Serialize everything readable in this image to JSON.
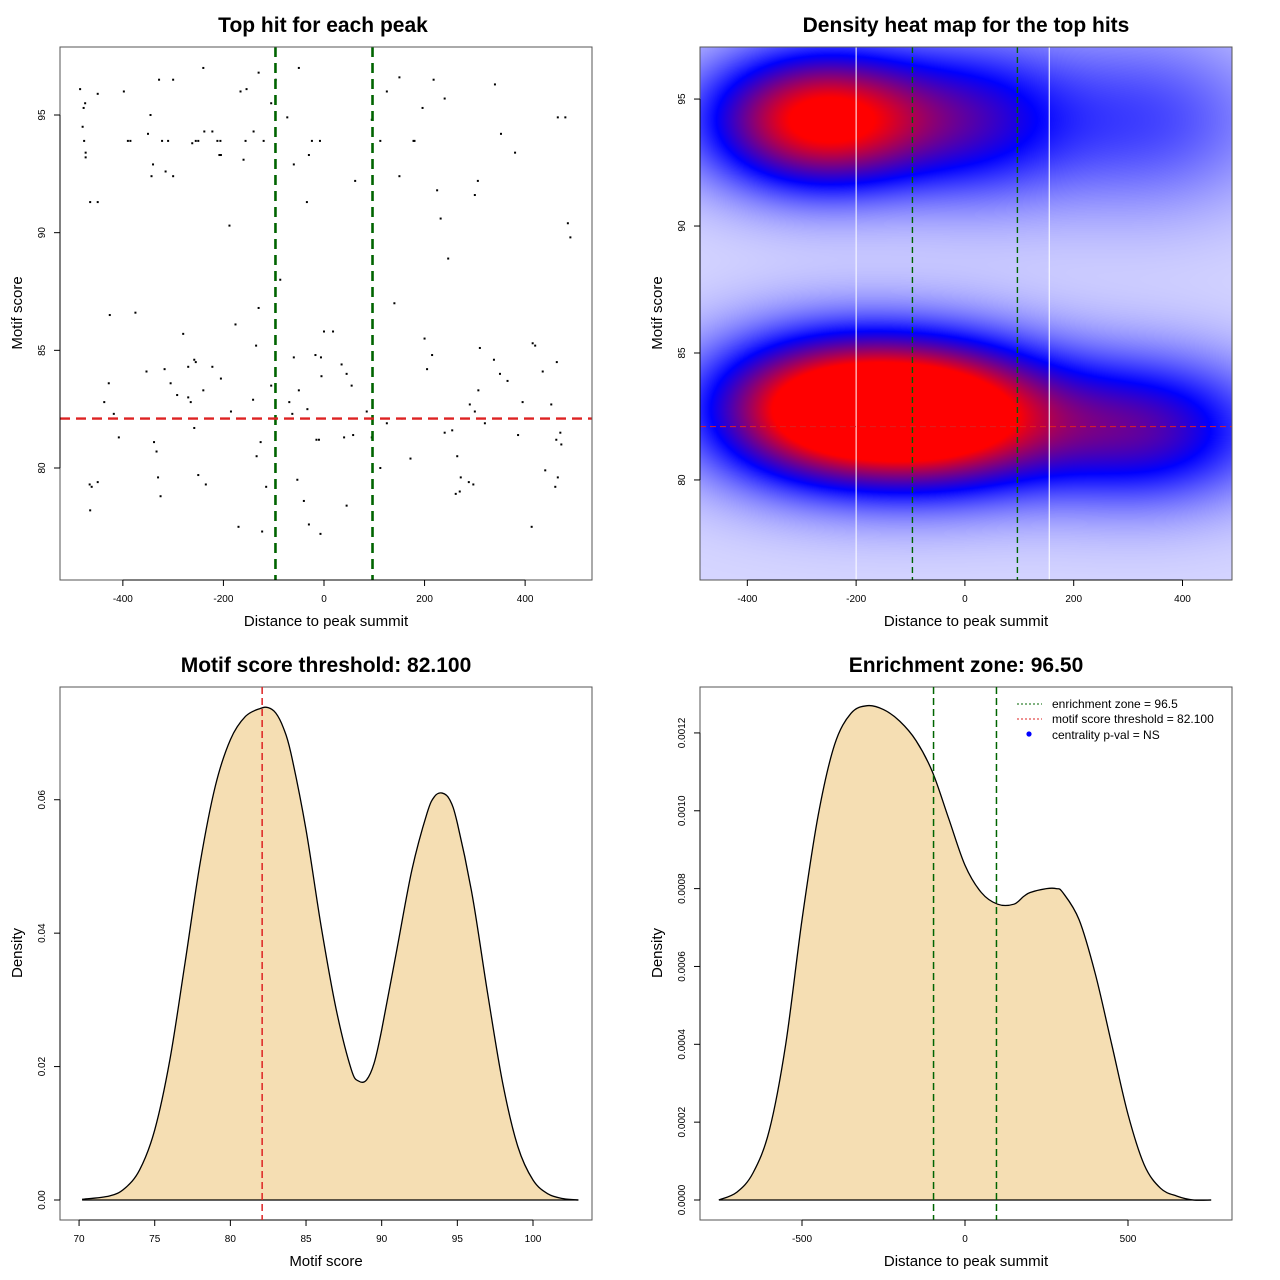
{
  "colors": {
    "enrichment_line": "#006400",
    "threshold_line": "#dd2222",
    "density_fill": "#f5deb3",
    "heat_low": "#ffffff",
    "heat_mid": "#0000ff",
    "heat_high": "#ff0000",
    "point": "#000000",
    "centrality_dot": "#0000ff"
  },
  "chart_data": [
    {
      "id": "scatter",
      "type": "scatter",
      "title": "Top hit for each peak",
      "xlabel": "Distance to peak summit",
      "ylabel": "Motif score",
      "xlim": [
        -525,
        533
      ],
      "ylim": [
        75.24,
        97.89
      ],
      "xticks": [
        -400,
        -200,
        0,
        200,
        400
      ],
      "xtick_labels": [
        "-400",
        "-200",
        "0",
        "200",
        "400"
      ],
      "yticks": [
        80,
        85,
        90,
        95
      ],
      "ytick_labels": [
        "80",
        "85",
        "90",
        "95"
      ],
      "vlines": [
        -96.5,
        96.5
      ],
      "hline": 82.1,
      "points": [
        [
          -485,
          96.1
        ],
        [
          -475,
          95.5
        ],
        [
          -478,
          95.3
        ],
        [
          -480,
          94.5
        ],
        [
          -477,
          93.9
        ],
        [
          -474,
          93.4
        ],
        [
          -474,
          93.2
        ],
        [
          -465,
          91.3
        ],
        [
          -450,
          91.3
        ],
        [
          -450,
          95.9
        ],
        [
          -398,
          96.0
        ],
        [
          -390,
          93.9
        ],
        [
          -385,
          93.9
        ],
        [
          -350,
          94.2
        ],
        [
          -345,
          95.0
        ],
        [
          -340,
          92.9
        ],
        [
          -343,
          92.4
        ],
        [
          -328,
          96.5
        ],
        [
          -322,
          93.9
        ],
        [
          -315,
          92.6
        ],
        [
          -310,
          93.9
        ],
        [
          -300,
          96.5
        ],
        [
          -300,
          92.4
        ],
        [
          -262,
          93.8
        ],
        [
          -255,
          93.9
        ],
        [
          -250,
          93.9
        ],
        [
          -238,
          94.3
        ],
        [
          -222,
          94.3
        ],
        [
          -212,
          93.9
        ],
        [
          -206,
          93.9
        ],
        [
          -208,
          93.3
        ],
        [
          -205,
          93.3
        ],
        [
          -188,
          90.3
        ],
        [
          -166,
          96.0
        ],
        [
          -160,
          93.1
        ],
        [
          -154,
          96.1
        ],
        [
          -156,
          93.9
        ],
        [
          -140,
          94.3
        ],
        [
          -120,
          93.9
        ],
        [
          -130,
          96.8
        ],
        [
          -105,
          95.5
        ],
        [
          -96,
          96.5
        ],
        [
          -73,
          94.9
        ],
        [
          -60,
          92.9
        ],
        [
          -50,
          97.0
        ],
        [
          -24,
          93.9
        ],
        [
          -8,
          93.9
        ],
        [
          -30,
          93.3
        ],
        [
          -34,
          91.3
        ],
        [
          -240,
          97.0
        ],
        [
          -426,
          86.5
        ],
        [
          -375,
          86.6
        ],
        [
          -176,
          86.1
        ],
        [
          -130,
          86.8
        ],
        [
          -87,
          88.0
        ],
        [
          -428,
          83.6
        ],
        [
          -437,
          82.8
        ],
        [
          -418,
          82.3
        ],
        [
          -353,
          84.1
        ],
        [
          -317,
          84.2
        ],
        [
          -305,
          83.6
        ],
        [
          -292,
          83.1
        ],
        [
          -280,
          85.7
        ],
        [
          -270,
          84.3
        ],
        [
          -258,
          84.6
        ],
        [
          -255,
          84.5
        ],
        [
          -240,
          83.3
        ],
        [
          -270,
          83.0
        ],
        [
          -265,
          82.8
        ],
        [
          -222,
          84.3
        ],
        [
          -205,
          83.8
        ],
        [
          -185,
          82.4
        ],
        [
          -141,
          82.9
        ],
        [
          -135,
          85.2
        ],
        [
          -105,
          83.5
        ],
        [
          -69,
          82.8
        ],
        [
          -60,
          84.7
        ],
        [
          -50,
          83.3
        ],
        [
          -63,
          82.3
        ],
        [
          -33,
          82.5
        ],
        [
          -17,
          84.8
        ],
        [
          -6,
          84.7
        ],
        [
          -5,
          83.9
        ],
        [
          0,
          85.8
        ],
        [
          18,
          85.8
        ],
        [
          35,
          84.4
        ],
        [
          45,
          84.0
        ],
        [
          55,
          83.5
        ],
        [
          85,
          82.4
        ],
        [
          125,
          81.9
        ],
        [
          140,
          87.0
        ],
        [
          155,
          82.1
        ],
        [
          200,
          85.5
        ],
        [
          205,
          84.2
        ],
        [
          215,
          84.8
        ],
        [
          255,
          81.6
        ],
        [
          290,
          82.7
        ],
        [
          300,
          82.4
        ],
        [
          320,
          81.9
        ],
        [
          310,
          85.1
        ],
        [
          338,
          84.6
        ],
        [
          350,
          84.0
        ],
        [
          365,
          83.7
        ],
        [
          395,
          82.8
        ],
        [
          415,
          85.3
        ],
        [
          420,
          85.2
        ],
        [
          435,
          84.1
        ],
        [
          452,
          82.7
        ],
        [
          463,
          84.5
        ],
        [
          470,
          81.5
        ],
        [
          472,
          81.0
        ],
        [
          -466,
          79.3
        ],
        [
          -462,
          79.2
        ],
        [
          -450,
          79.4
        ],
        [
          -465,
          78.2
        ],
        [
          -408,
          81.3
        ],
        [
          -338,
          81.1
        ],
        [
          -333,
          80.7
        ],
        [
          -330,
          79.6
        ],
        [
          -325,
          78.8
        ],
        [
          -258,
          81.7
        ],
        [
          -250,
          79.7
        ],
        [
          -235,
          79.3
        ],
        [
          -170,
          77.5
        ],
        [
          -134,
          80.5
        ],
        [
          -126,
          81.1
        ],
        [
          -123,
          77.3
        ],
        [
          -115,
          79.2
        ],
        [
          -53,
          79.5
        ],
        [
          -40,
          78.6
        ],
        [
          -30,
          77.6
        ],
        [
          -15,
          81.2
        ],
        [
          -10,
          81.2
        ],
        [
          -7,
          77.2
        ],
        [
          40,
          81.3
        ],
        [
          45,
          78.4
        ],
        [
          58,
          81.4
        ],
        [
          95,
          81.3
        ],
        [
          112,
          80.0
        ],
        [
          172,
          80.4
        ],
        [
          240,
          81.5
        ],
        [
          265,
          80.5
        ],
        [
          272,
          79.6
        ],
        [
          288,
          79.4
        ],
        [
          297,
          79.3
        ],
        [
          262,
          78.9
        ],
        [
          270,
          79.0
        ],
        [
          307,
          83.3
        ],
        [
          386,
          81.4
        ],
        [
          413,
          77.5
        ],
        [
          440,
          79.9
        ],
        [
          460,
          79.2
        ],
        [
          465,
          79.6
        ],
        [
          462,
          81.2
        ],
        [
          150,
          92.4
        ],
        [
          196,
          95.3
        ],
        [
          218,
          96.5
        ],
        [
          240,
          95.7
        ],
        [
          232,
          90.6
        ],
        [
          247,
          88.9
        ],
        [
          225,
          91.8
        ],
        [
          300,
          91.6
        ],
        [
          306,
          92.2
        ],
        [
          340,
          96.3
        ],
        [
          352,
          94.2
        ],
        [
          380,
          93.4
        ],
        [
          465,
          94.9
        ],
        [
          480,
          94.9
        ],
        [
          485,
          90.4
        ],
        [
          490,
          89.8
        ],
        [
          95,
          94.8
        ],
        [
          112,
          93.9
        ],
        [
          178,
          93.9
        ],
        [
          180,
          93.9
        ],
        [
          150,
          96.6
        ],
        [
          125,
          96.0
        ],
        [
          62,
          92.2
        ]
      ]
    },
    {
      "id": "heatmap",
      "type": "heatmap",
      "title": "Density heat map for the top hits",
      "xlabel": "Distance to peak summit",
      "ylabel": "Motif score",
      "xlim": [
        -487,
        491
      ],
      "ylim": [
        76.06,
        97.05
      ],
      "xticks": [
        -400,
        -200,
        0,
        200,
        400
      ],
      "xtick_labels": [
        "-400",
        "-200",
        "0",
        "200",
        "400"
      ],
      "yticks": [
        80,
        85,
        90,
        95
      ],
      "ytick_labels": [
        "80",
        "85",
        "90",
        "95"
      ],
      "vlines_dashed": [
        -96.5,
        96.5
      ],
      "vlines_white": [
        -200,
        155
      ],
      "hline": 82.1,
      "kernels": [
        {
          "x": -260,
          "y": 94.2,
          "sx": 150,
          "sy": 1.9,
          "w": 1.0
        },
        {
          "x": -260,
          "y": 82.8,
          "sx": 155,
          "sy": 2.0,
          "w": 1.0
        },
        {
          "x": -30,
          "y": 82.6,
          "sx": 150,
          "sy": 2.0,
          "w": 0.95
        },
        {
          "x": 330,
          "y": 82.0,
          "sx": 160,
          "sy": 2.0,
          "w": 0.55
        },
        {
          "x": 330,
          "y": 94.2,
          "sx": 170,
          "sy": 2.5,
          "w": 0.28
        },
        {
          "x": 30,
          "y": 94.2,
          "sx": 120,
          "sy": 2.2,
          "w": 0.35
        }
      ]
    },
    {
      "id": "score-density",
      "type": "area",
      "title": "Motif score threshold: 82.100",
      "xlabel": "Motif score",
      "ylabel": "Density",
      "xlim": [
        68.74,
        103.9
      ],
      "ylim": [
        -0.003,
        0.0769
      ],
      "xticks": [
        70,
        75,
        80,
        85,
        90,
        95,
        100
      ],
      "xtick_labels": [
        "70",
        "75",
        "80",
        "85",
        "90",
        "95",
        "100"
      ],
      "yticks": [
        0.0,
        0.02,
        0.04,
        0.06
      ],
      "ytick_labels": [
        "0.00",
        "0.02",
        "0.04",
        "0.06"
      ],
      "vline": 82.1,
      "x": [
        70.2,
        72,
        73,
        74,
        75,
        76,
        77,
        78,
        79,
        80,
        81,
        82,
        82.5,
        83,
        83.5,
        84,
        85,
        86,
        87,
        88,
        88.5,
        89,
        89.5,
        90,
        91,
        92,
        93,
        93.5,
        94,
        94.5,
        95,
        96,
        97,
        98,
        99,
        100,
        101,
        102,
        103
      ],
      "y": [
        0.0001,
        0.0006,
        0.0017,
        0.0045,
        0.0105,
        0.021,
        0.0355,
        0.0505,
        0.062,
        0.069,
        0.0725,
        0.0737,
        0.0738,
        0.073,
        0.0708,
        0.067,
        0.0555,
        0.041,
        0.0285,
        0.0195,
        0.0178,
        0.018,
        0.0205,
        0.0255,
        0.0375,
        0.0495,
        0.058,
        0.0605,
        0.061,
        0.06,
        0.0565,
        0.0455,
        0.031,
        0.0175,
        0.008,
        0.003,
        0.0009,
        0.0002,
        0.0
      ]
    },
    {
      "id": "distance-density",
      "type": "area",
      "title": "Enrichment zone: 96.50",
      "xlabel": "Distance to peak summit",
      "ylabel": "Density",
      "xlim": [
        -812.9,
        819
      ],
      "ylim": [
        -5.14e-05,
        0.001318
      ],
      "xticks": [
        -500,
        0,
        500
      ],
      "xtick_labels": [
        "-500",
        "0",
        "500"
      ],
      "yticks": [
        0.0,
        0.0002,
        0.0004,
        0.0006,
        0.0008,
        0.001,
        0.0012
      ],
      "ytick_labels": [
        "0.0000",
        "0.0002",
        "0.0004",
        "0.0006",
        "0.0008",
        "0.0010",
        "0.0012"
      ],
      "vlines": [
        -96.5,
        96.5
      ],
      "x": [
        -755,
        -700,
        -650,
        -600,
        -550,
        -500,
        -450,
        -400,
        -350,
        -300,
        -250,
        -200,
        -150,
        -100,
        -50,
        0,
        50,
        100,
        150,
        180,
        200,
        250,
        280,
        300,
        350,
        400,
        450,
        500,
        550,
        600,
        650,
        700,
        755
      ],
      "y": [
        0.0,
        2e-05,
        7e-05,
        0.00018,
        0.0004,
        0.00072,
        0.00099,
        0.00117,
        0.00125,
        0.00127,
        0.00126,
        0.00123,
        0.00118,
        0.0011,
        0.00098,
        0.00086,
        0.00079,
        0.00076,
        0.00076,
        0.00078,
        0.00079,
        0.0008,
        0.0008,
        0.00079,
        0.00072,
        0.00058,
        0.0004,
        0.00022,
        9e-05,
        3e-05,
        1e-05,
        0.0,
        0.0
      ],
      "legend": {
        "position": "top-right",
        "entries": [
          {
            "label": "enrichment zone = 96.5",
            "kind": "dotted-line",
            "color": "#006400"
          },
          {
            "label": "motif score threshold = 82.100",
            "kind": "dotted-line",
            "color": "#dd2222"
          },
          {
            "label": "centrality p-val = NS",
            "kind": "dot",
            "color": "#0000ff"
          }
        ]
      }
    }
  ]
}
